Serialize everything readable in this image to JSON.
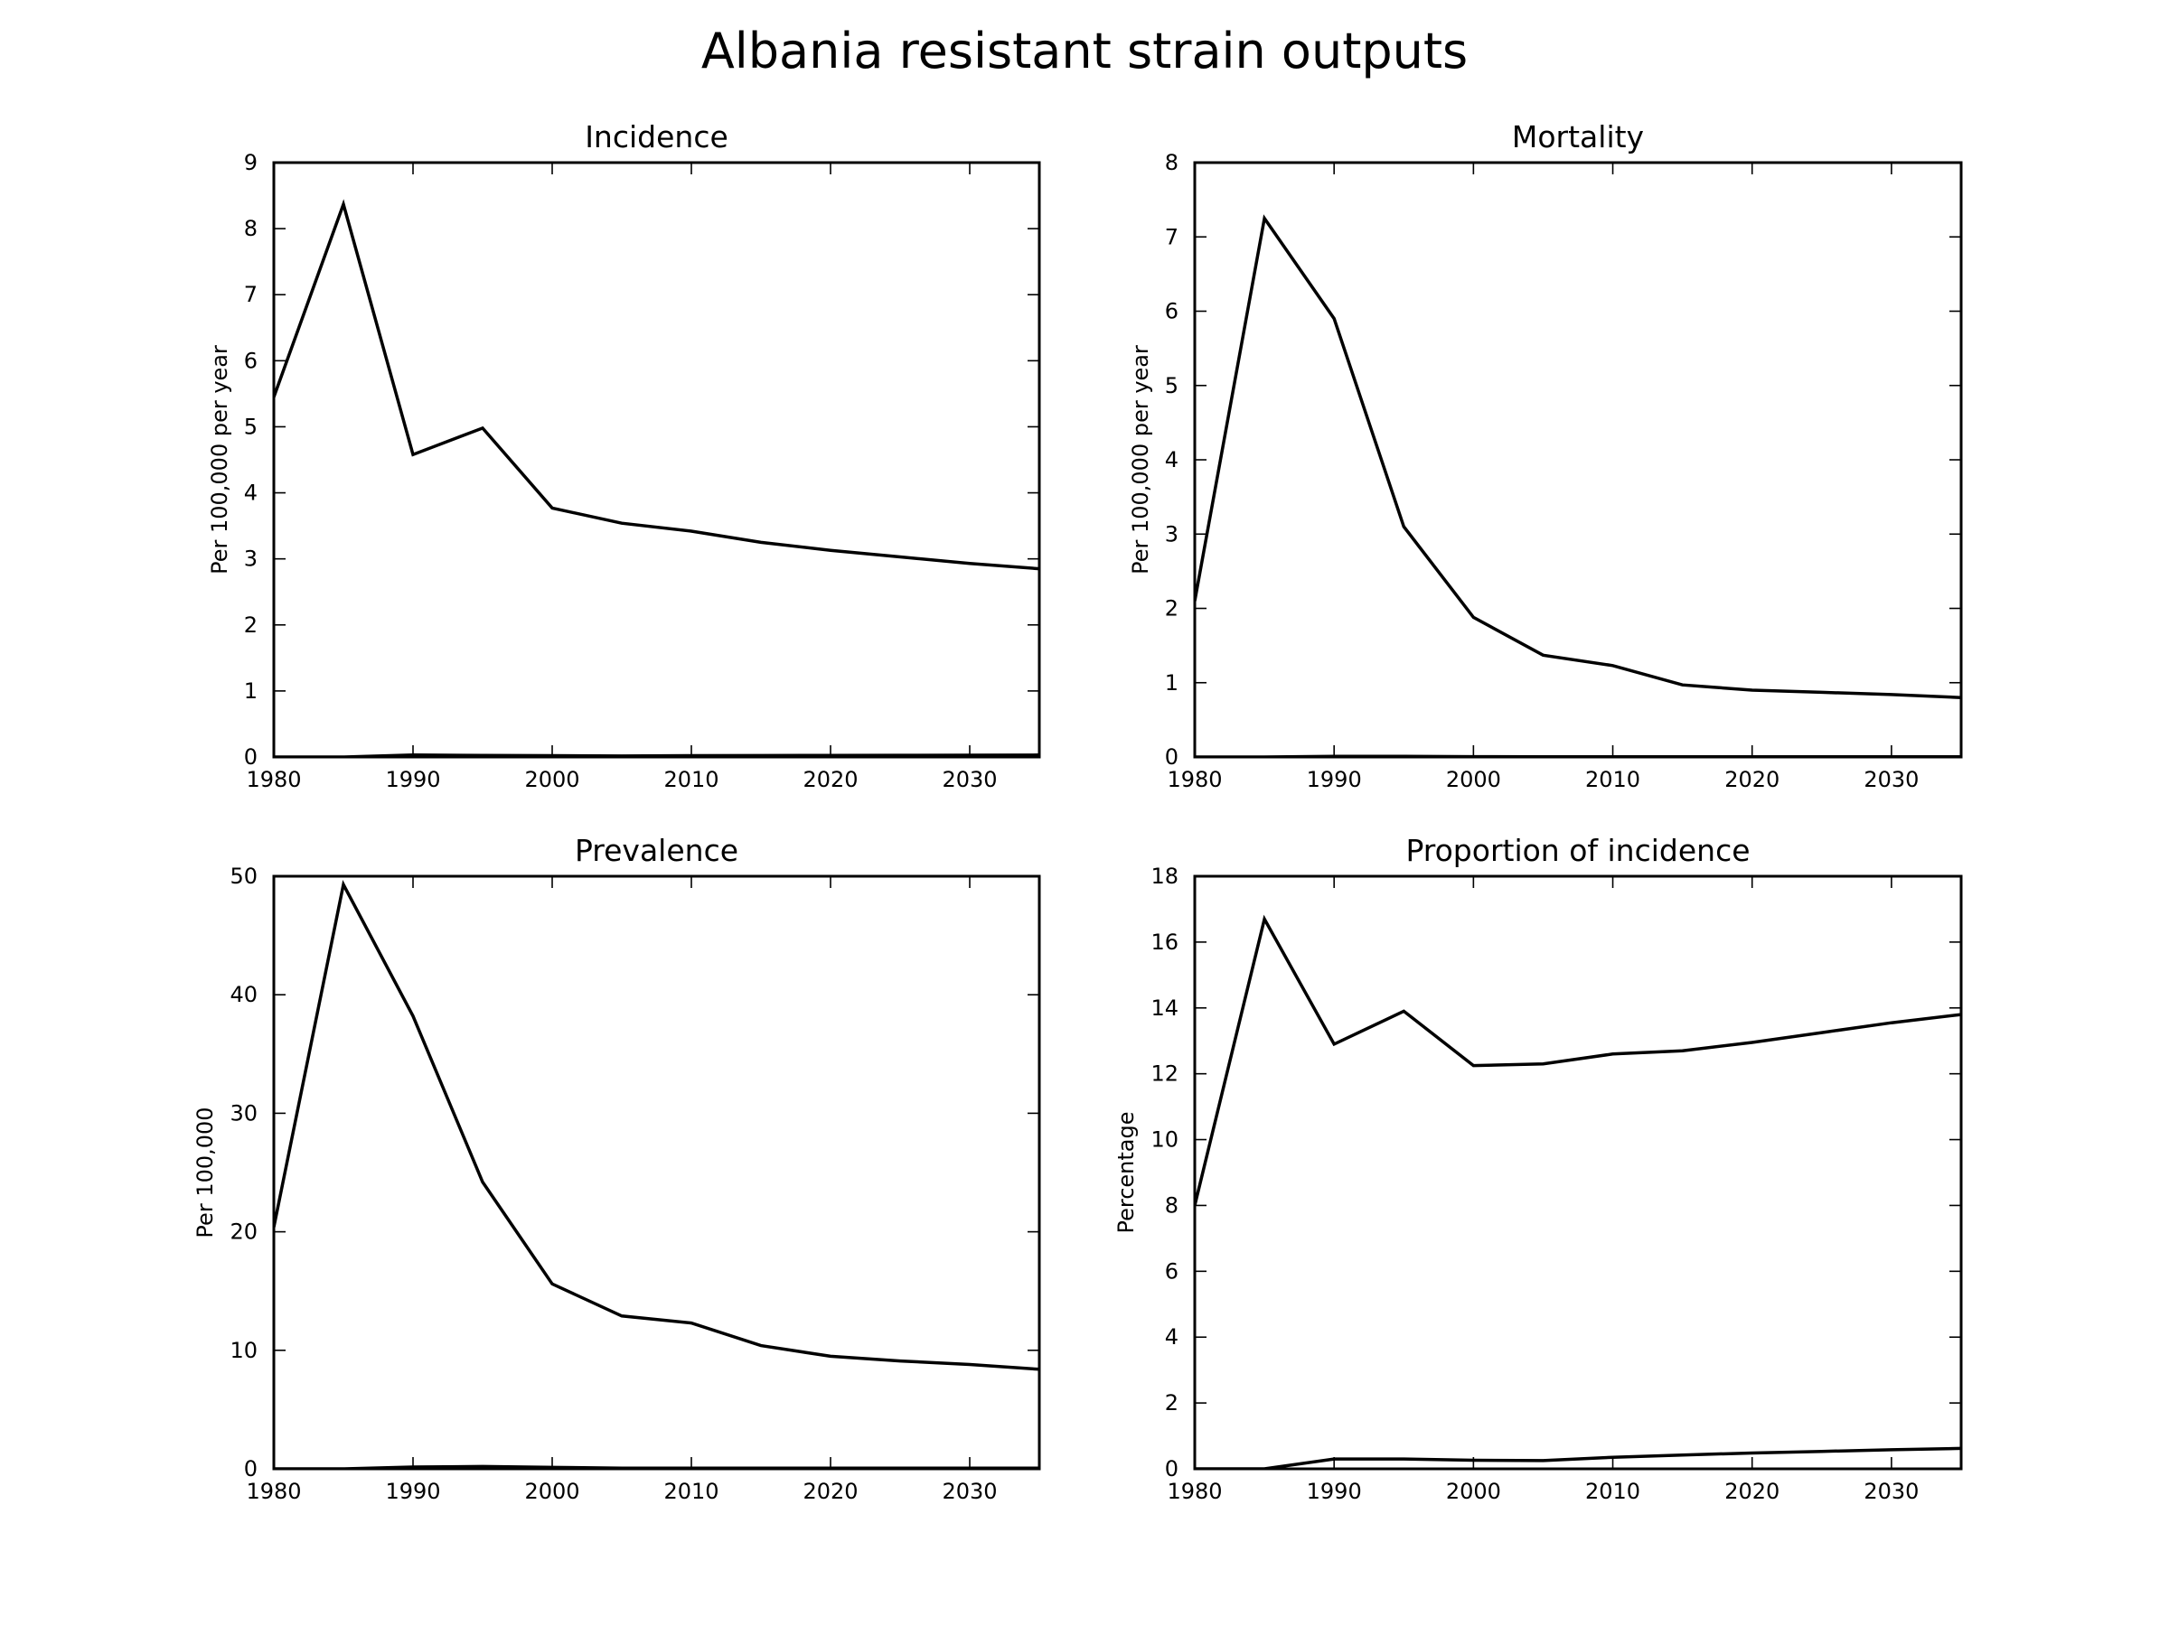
{
  "figure": {
    "title": "Albania resistant strain outputs"
  },
  "chart_data": [
    {
      "type": "line",
      "title": "Incidence",
      "xlabel": "",
      "ylabel": "Per 100,000 per year",
      "xlim": [
        1980,
        2035
      ],
      "ylim": [
        0,
        9
      ],
      "xticks": [
        1980,
        1990,
        2000,
        2010,
        2020,
        2030
      ],
      "yticks": [
        0,
        1,
        2,
        3,
        4,
        5,
        6,
        7,
        8,
        9
      ],
      "x": [
        1980,
        1985,
        1990,
        1995,
        2000,
        2005,
        2010,
        2015,
        2020,
        2025,
        2030,
        2035
      ],
      "series": [
        {
          "values": [
            5.45,
            8.37,
            4.58,
            4.98,
            3.77,
            3.54,
            3.42,
            3.25,
            3.13,
            3.03,
            2.93,
            2.85
          ]
        },
        {
          "values": [
            0.0,
            0.0,
            0.03,
            0.025,
            0.02,
            0.015,
            0.02,
            0.022,
            0.024,
            0.026,
            0.028,
            0.03
          ]
        }
      ],
      "color": "#000000",
      "grid": false
    },
    {
      "type": "line",
      "title": "Mortality",
      "xlabel": "",
      "ylabel": "Per 100,000 per year",
      "xlim": [
        1980,
        2035
      ],
      "ylim": [
        0,
        8
      ],
      "xticks": [
        1980,
        1990,
        2000,
        2010,
        2020,
        2030
      ],
      "yticks": [
        0,
        1,
        2,
        3,
        4,
        5,
        6,
        7,
        8
      ],
      "x": [
        1980,
        1985,
        1990,
        1995,
        2000,
        2005,
        2010,
        2015,
        2020,
        2025,
        2030,
        2035
      ],
      "series": [
        {
          "values": [
            2.1,
            7.25,
            5.9,
            3.1,
            1.88,
            1.37,
            1.23,
            0.97,
            0.9,
            0.87,
            0.84,
            0.8
          ]
        },
        {
          "values": [
            0.0,
            0.0,
            0.01,
            0.01,
            0.005,
            0.004,
            0.004,
            0.004,
            0.004,
            0.004,
            0.004,
            0.004
          ]
        }
      ],
      "color": "#000000",
      "grid": false
    },
    {
      "type": "line",
      "title": "Prevalence",
      "xlabel": "",
      "ylabel": "Per 100,000",
      "xlim": [
        1980,
        2035
      ],
      "ylim": [
        0,
        50
      ],
      "xticks": [
        1980,
        1990,
        2000,
        2010,
        2020,
        2030
      ],
      "yticks": [
        0,
        10,
        20,
        30,
        40,
        50
      ],
      "x": [
        1980,
        1985,
        1990,
        1995,
        2000,
        2005,
        2010,
        2015,
        2020,
        2025,
        2030,
        2035
      ],
      "series": [
        {
          "values": [
            20.4,
            49.3,
            38.2,
            24.2,
            15.6,
            12.9,
            12.3,
            10.4,
            9.5,
            9.1,
            8.8,
            8.4
          ]
        },
        {
          "values": [
            0.0,
            0.0,
            0.15,
            0.2,
            0.12,
            0.06,
            0.05,
            0.05,
            0.05,
            0.05,
            0.05,
            0.05
          ]
        }
      ],
      "color": "#000000",
      "grid": false
    },
    {
      "type": "line",
      "title": "Proportion of incidence",
      "xlabel": "",
      "ylabel": "Percentage",
      "xlim": [
        1980,
        2035
      ],
      "ylim": [
        0,
        18
      ],
      "xticks": [
        1980,
        1990,
        2000,
        2010,
        2020,
        2030
      ],
      "yticks": [
        0,
        2,
        4,
        6,
        8,
        10,
        12,
        14,
        16,
        18
      ],
      "x": [
        1980,
        1985,
        1990,
        1995,
        2000,
        2005,
        2010,
        2015,
        2020,
        2025,
        2030,
        2035
      ],
      "series": [
        {
          "values": [
            8.0,
            16.7,
            12.9,
            13.9,
            12.25,
            12.3,
            12.6,
            12.7,
            12.95,
            13.25,
            13.55,
            13.8
          ]
        },
        {
          "values": [
            0.0,
            0.0,
            0.3,
            0.3,
            0.26,
            0.25,
            0.35,
            0.42,
            0.48,
            0.53,
            0.58,
            0.62
          ]
        }
      ],
      "color": "#000000",
      "grid": false
    }
  ]
}
